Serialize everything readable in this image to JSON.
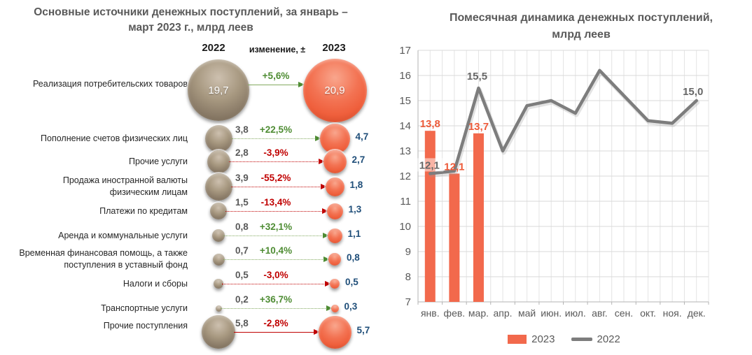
{
  "chart_data": [
    {
      "type": "bubble-comparison",
      "title_lines": [
        "Основные источники денежных поступлений, за январь –",
        "март 2023 г., млрд  леев"
      ],
      "columns": {
        "left": "2022",
        "middle": "изменение, ±",
        "right": "2023"
      },
      "colors": {
        "bubble_2022": "#9a8b79",
        "bubble_2023": "#f1684a",
        "positive": "#4e8c33",
        "negative": "#c00000",
        "value_2022_text": "#595959",
        "value_2023_text": "#1f4e79"
      },
      "rows": [
        {
          "label": "Реализация потребительских товаров",
          "v2022": "19,7",
          "change": "+5,6%",
          "v2023": "20,9"
        },
        {
          "label": "Пополнение счетов физических лиц",
          "v2022": "3,8",
          "change": "+22,5%",
          "v2023": "4,7"
        },
        {
          "label": "Прочие услуги",
          "v2022": "2,8",
          "change": "-3,9%",
          "v2023": "2,7"
        },
        {
          "label": "Продажа иностранной валюты физическим лицам",
          "v2022": "3,9",
          "change": "-55,2%",
          "v2023": "1,8"
        },
        {
          "label": "Платежи по кредитам",
          "v2022": "1,5",
          "change": "-13,4%",
          "v2023": "1,3"
        },
        {
          "label": "Аренда и коммунальные услуги",
          "v2022": "0,8",
          "change": "+32,1%",
          "v2023": "1,1"
        },
        {
          "label": "Временная финансовая помощь, а также поступления в уставный фонд",
          "v2022": "0,7",
          "change": "+10,4%",
          "v2023": "0,8"
        },
        {
          "label": "Налоги и сборы",
          "v2022": "0,5",
          "change": "-3,0%",
          "v2023": "0,5"
        },
        {
          "label": "Транспортные услуги",
          "v2022": "0,2",
          "change": "+36,7%",
          "v2023": "0,3"
        },
        {
          "label": "Прочие поступления",
          "v2022": "5,8",
          "change": "-2,8%",
          "v2023": "5,7"
        }
      ]
    },
    {
      "type": "bar+line",
      "title_lines": [
        "Помесячная динамика денежных поступлений,",
        "млрд леев"
      ],
      "categories": [
        "янв.",
        "фев.",
        "мар.",
        "апр.",
        "май",
        "июн.",
        "июл.",
        "авг.",
        "сен.",
        "окт.",
        "ноя.",
        "дек."
      ],
      "ylim": [
        7,
        17
      ],
      "ytick_step": 1,
      "grid": true,
      "legend_position": "bottom",
      "series": [
        {
          "name": "2023",
          "type": "bar",
          "color": "#f2694c",
          "values": [
            13.8,
            12.1,
            13.7
          ],
          "labels": [
            "13,8",
            "12,1",
            "13,7"
          ]
        },
        {
          "name": "2022",
          "type": "line",
          "color": "#7d7d7d",
          "values": [
            12.1,
            12.2,
            15.5,
            13.0,
            14.8,
            15.0,
            14.5,
            16.2,
            15.2,
            14.2,
            14.1,
            15.0
          ],
          "labeled_points": [
            {
              "index": 0,
              "label": "12,1"
            },
            {
              "index": 2,
              "label": "15,5"
            },
            {
              "index": 11,
              "label": "15,0"
            }
          ]
        }
      ],
      "legend": [
        "2023",
        "2022"
      ]
    }
  ]
}
